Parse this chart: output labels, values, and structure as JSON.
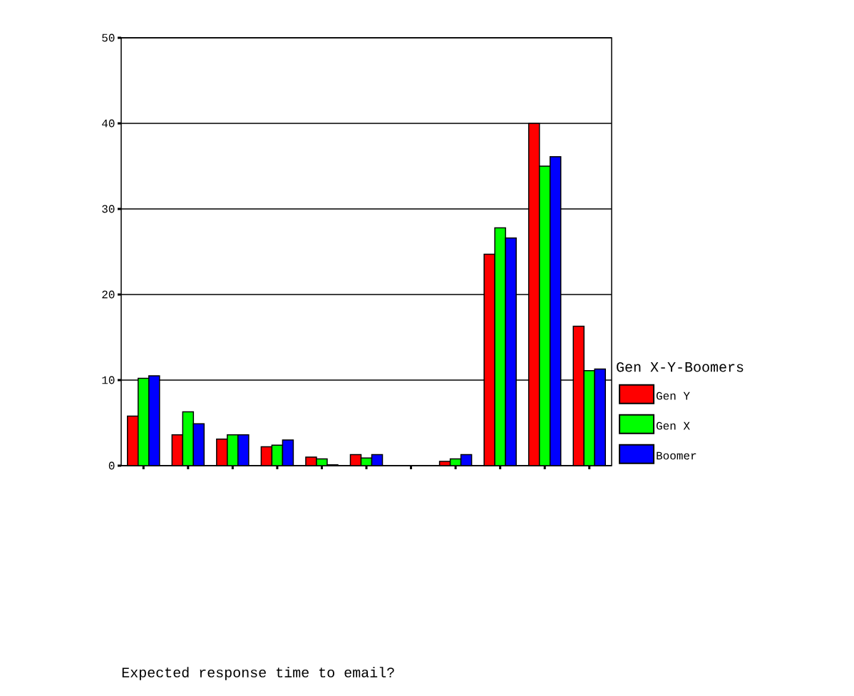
{
  "chart_data": {
    "type": "bar",
    "annotations": [
      "Expected response time to email?"
    ],
    "legend_title": "Gen X-Y-Boomers",
    "categories": [
      null,
      null,
      null,
      null,
      null,
      null,
      null,
      null,
      null,
      null,
      null
    ],
    "series": [
      {
        "name": "Gen Y",
        "color": "#ff0000",
        "values": [
          5.8,
          3.6,
          3.1,
          2.2,
          1.0,
          1.3,
          null,
          0.5,
          24.7,
          40.0,
          16.3
        ]
      },
      {
        "name": "Gen X",
        "color": "#00ff00",
        "values": [
          10.2,
          6.3,
          3.6,
          2.4,
          0.8,
          0.9,
          null,
          0.8,
          27.8,
          35.0,
          11.1
        ]
      },
      {
        "name": "Boomer",
        "color": "#0000ff",
        "values": [
          10.5,
          4.9,
          3.6,
          3.0,
          0.1,
          1.3,
          null,
          1.3,
          26.6,
          36.1,
          11.3
        ]
      }
    ],
    "ylim": [
      0,
      50
    ],
    "yticks": [
      0,
      10,
      20,
      30,
      40,
      50
    ],
    "grid": "y",
    "legend": "right",
    "tick_labels": "y"
  }
}
